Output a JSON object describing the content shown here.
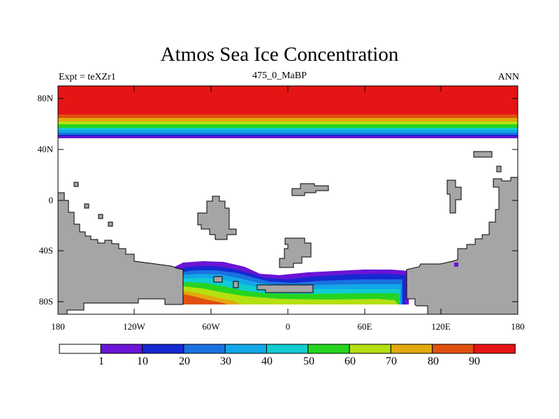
{
  "title": "Atmos Sea Ice Concentration",
  "subtitle_left": "Expt = teXZr1",
  "subtitle_center": "475_0_MaBP",
  "subtitle_right": "ANN",
  "y_axis_labels": [
    "80N",
    "40N",
    "0",
    "40S",
    "80S"
  ],
  "x_axis_labels": [
    "180",
    "120W",
    "60W",
    "0",
    "60E",
    "120E",
    "180"
  ],
  "colorbar": {
    "labels": [
      "1",
      "10",
      "20",
      "30",
      "40",
      "50",
      "60",
      "70",
      "80",
      "90"
    ],
    "colors": [
      "#ffffff",
      "#6a14d6",
      "#1628d2",
      "#1a72e0",
      "#12a8e8",
      "#10ccd0",
      "#26d420",
      "#b4e010",
      "#e2a80c",
      "#e25010",
      "#e61414"
    ]
  },
  "land_color": "#a5a5a5"
}
